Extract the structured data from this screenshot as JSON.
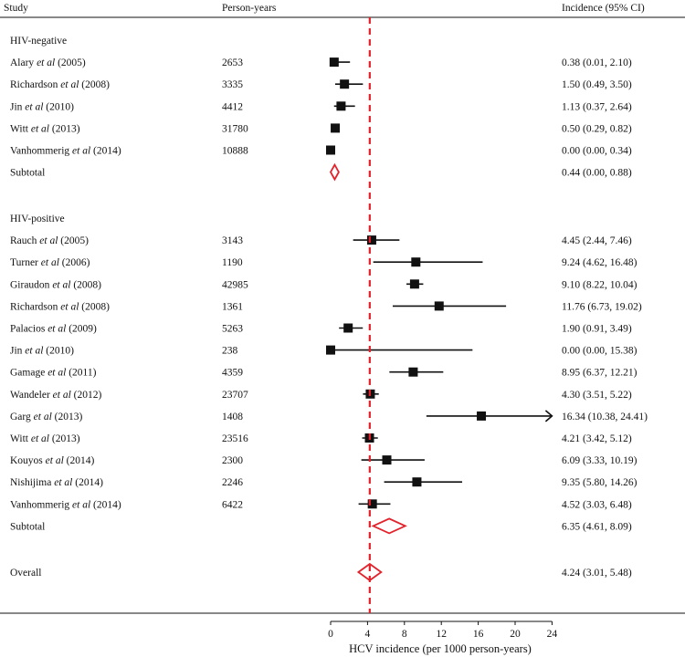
{
  "chart_data": {
    "type": "forest",
    "headers": {
      "study": "Study",
      "person_years": "Person-years",
      "incidence": "Incidence (95% CI)"
    },
    "xlabel": "HCV incidence (per 1000 person-years)",
    "xlim": [
      0,
      24
    ],
    "xticks": [
      "0",
      "4",
      "8",
      "12",
      "16",
      "20",
      "24"
    ],
    "reference_line": 4.24,
    "colors": {
      "summary": "#e3222b",
      "marker": "#111111",
      "reference": "#e3222b"
    },
    "groups": [
      {
        "label": "HIV-negative",
        "studies": [
          {
            "author": "Alary",
            "year": "(2005)",
            "person_years": "2653",
            "estimate": 0.38,
            "lower": 0.01,
            "upper": 2.1,
            "ci_text": "0.38 (0.01, 2.10)"
          },
          {
            "author": "Richardson",
            "year": "(2008)",
            "person_years": "3335",
            "estimate": 1.5,
            "lower": 0.49,
            "upper": 3.5,
            "ci_text": "1.50 (0.49, 3.50)"
          },
          {
            "author": "Jin",
            "year": "(2010)",
            "person_years": "4412",
            "estimate": 1.13,
            "lower": 0.37,
            "upper": 2.64,
            "ci_text": "1.13 (0.37, 2.64)"
          },
          {
            "author": "Witt",
            "year": "(2013)",
            "person_years": "31780",
            "estimate": 0.5,
            "lower": 0.29,
            "upper": 0.82,
            "ci_text": "0.50 (0.29, 0.82)"
          },
          {
            "author": "Vanhommerig",
            "year": "(2014)",
            "person_years": "10888",
            "estimate": 0.0,
            "lower": 0.0,
            "upper": 0.34,
            "ci_text": "0.00 (0.00, 0.34)"
          }
        ],
        "subtotal": {
          "label": "Subtotal",
          "estimate": 0.44,
          "lower": 0.0,
          "upper": 0.88,
          "ci_text": "0.44 (0.00, 0.88)"
        }
      },
      {
        "label": "HIV-positive",
        "studies": [
          {
            "author": "Rauch",
            "year": "(2005)",
            "person_years": "3143",
            "estimate": 4.45,
            "lower": 2.44,
            "upper": 7.46,
            "ci_text": "4.45 (2.44, 7.46)"
          },
          {
            "author": "Turner",
            "year": "(2006)",
            "person_years": "1190",
            "estimate": 9.24,
            "lower": 4.62,
            "upper": 16.48,
            "ci_text": "9.24 (4.62, 16.48)"
          },
          {
            "author": "Giraudon",
            "year": "(2008)",
            "person_years": "42985",
            "estimate": 9.1,
            "lower": 8.22,
            "upper": 10.04,
            "ci_text": "9.10 (8.22, 10.04)"
          },
          {
            "author": "Richardson",
            "year": "(2008)",
            "person_years": "1361",
            "estimate": 11.76,
            "lower": 6.73,
            "upper": 19.02,
            "ci_text": "11.76 (6.73, 19.02)"
          },
          {
            "author": "Palacios",
            "year": "(2009)",
            "person_years": "5263",
            "estimate": 1.9,
            "lower": 0.91,
            "upper": 3.49,
            "ci_text": "1.90 (0.91, 3.49)"
          },
          {
            "author": "Jin",
            "year": "(2010)",
            "person_years": "238",
            "estimate": 0.0,
            "lower": 0.0,
            "upper": 15.38,
            "ci_text": "0.00 (0.00, 15.38)"
          },
          {
            "author": "Gamage",
            "year": "(2011)",
            "person_years": "4359",
            "estimate": 8.95,
            "lower": 6.37,
            "upper": 12.21,
            "ci_text": "8.95 (6.37, 12.21)"
          },
          {
            "author": "Wandeler",
            "year": "(2012)",
            "person_years": "23707",
            "estimate": 4.3,
            "lower": 3.51,
            "upper": 5.22,
            "ci_text": "4.30 (3.51, 5.22)"
          },
          {
            "author": "Garg",
            "year": "(2013)",
            "person_years": "1408",
            "estimate": 16.34,
            "lower": 10.38,
            "upper": 24.41,
            "ci_text": "16.34 (10.38, 24.41)"
          },
          {
            "author": "Witt",
            "year": "(2013)",
            "person_years": "23516",
            "estimate": 4.21,
            "lower": 3.42,
            "upper": 5.12,
            "ci_text": "4.21 (3.42, 5.12)"
          },
          {
            "author": "Kouyos",
            "year": "(2014)",
            "person_years": "2300",
            "estimate": 6.09,
            "lower": 3.33,
            "upper": 10.19,
            "ci_text": "6.09 (3.33, 10.19)"
          },
          {
            "author": "Nishijima",
            "year": "(2014)",
            "person_years": "2246",
            "estimate": 9.35,
            "lower": 5.8,
            "upper": 14.26,
            "ci_text": "9.35 (5.80, 14.26)"
          },
          {
            "author": "Vanhommerig",
            "year": "(2014)",
            "person_years": "6422",
            "estimate": 4.52,
            "lower": 3.03,
            "upper": 6.48,
            "ci_text": "4.52 (3.03, 6.48)"
          }
        ],
        "subtotal": {
          "label": "Subtotal",
          "estimate": 6.35,
          "lower": 4.61,
          "upper": 8.09,
          "ci_text": "6.35 (4.61, 8.09)"
        }
      }
    ],
    "overall": {
      "label": "Overall",
      "estimate": 4.24,
      "lower": 3.01,
      "upper": 5.48,
      "ci_text": "4.24 (3.01, 5.48)"
    }
  }
}
